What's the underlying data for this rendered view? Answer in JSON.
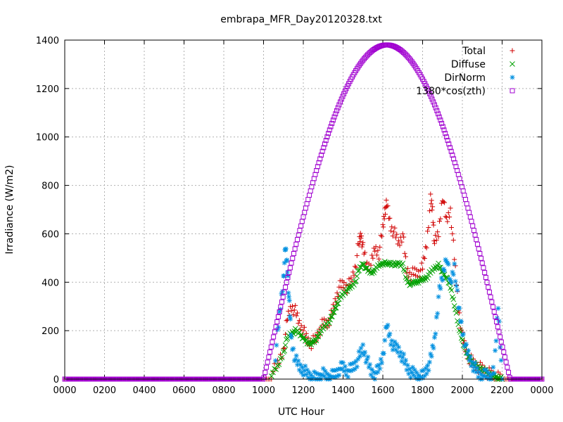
{
  "chart_data": {
    "type": "scatter",
    "title": "embrapa_MFR_Day20120328.txt",
    "xlabel": "UTC Hour",
    "ylabel": "Irradiance (W/m2)",
    "xlim": [
      0,
      2400
    ],
    "ylim": [
      0,
      1400
    ],
    "x_tick_labels": [
      "0000",
      "0200",
      "0400",
      "0600",
      "0800",
      "1000",
      "1200",
      "1400",
      "1600",
      "1800",
      "2000",
      "2200",
      "0000"
    ],
    "y_ticks": [
      0,
      200,
      400,
      600,
      800,
      1000,
      1200,
      1400
    ],
    "grid": true,
    "legend_position": "top-right",
    "series": [
      {
        "name": "Total",
        "marker": "+",
        "color": "#d00000",
        "x": [
          1040,
          1070,
          1100,
          1120,
          1140,
          1160,
          1180,
          1200,
          1220,
          1240,
          1260,
          1280,
          1300,
          1320,
          1340,
          1360,
          1380,
          1400,
          1420,
          1440,
          1460,
          1480,
          1490,
          1500,
          1520,
          1540,
          1560,
          1580,
          1600,
          1610,
          1620,
          1640,
          1660,
          1680,
          1700,
          1720,
          1740,
          1760,
          1780,
          1800,
          1820,
          1840,
          1850,
          1860,
          1880,
          1900,
          1920,
          1940,
          1960,
          1980,
          2000,
          2020,
          2040,
          2060,
          2080,
          2100,
          2120,
          2140,
          2160,
          2180,
          2200
        ],
        "y": [
          20,
          60,
          120,
          250,
          300,
          280,
          230,
          200,
          160,
          150,
          160,
          200,
          230,
          230,
          260,
          320,
          380,
          390,
          380,
          400,
          460,
          560,
          600,
          540,
          470,
          470,
          540,
          520,
          620,
          700,
          720,
          630,
          600,
          560,
          600,
          450,
          430,
          440,
          440,
          460,
          560,
          740,
          700,
          560,
          600,
          760,
          650,
          700,
          500,
          300,
          170,
          110,
          80,
          60,
          50,
          40,
          30,
          20,
          10,
          5,
          0
        ]
      },
      {
        "name": "Diffuse",
        "marker": "x",
        "color": "#00a000",
        "x": [
          1040,
          1070,
          1100,
          1120,
          1140,
          1160,
          1180,
          1200,
          1220,
          1240,
          1260,
          1280,
          1300,
          1320,
          1340,
          1360,
          1380,
          1400,
          1420,
          1440,
          1460,
          1480,
          1500,
          1520,
          1540,
          1560,
          1580,
          1600,
          1620,
          1640,
          1660,
          1680,
          1700,
          1720,
          1740,
          1760,
          1780,
          1800,
          1820,
          1840,
          1860,
          1880,
          1900,
          1920,
          1940,
          1960,
          1980,
          2000,
          2020,
          2040,
          2060,
          2080,
          2100,
          2120,
          2140,
          2160,
          2180,
          2200
        ],
        "y": [
          20,
          50,
          110,
          170,
          190,
          200,
          190,
          170,
          150,
          150,
          155,
          190,
          210,
          230,
          250,
          290,
          330,
          350,
          370,
          380,
          400,
          450,
          480,
          450,
          440,
          450,
          470,
          480,
          475,
          480,
          470,
          480,
          470,
          410,
          390,
          400,
          405,
          410,
          420,
          440,
          460,
          470,
          440,
          420,
          380,
          310,
          220,
          160,
          110,
          80,
          60,
          50,
          40,
          30,
          20,
          10,
          5,
          0
        ]
      },
      {
        "name": "DirNorm",
        "marker": "*",
        "color": "#0090e0",
        "x": [
          1060,
          1080,
          1100,
          1110,
          1120,
          1130,
          1140,
          1160,
          1180,
          1200,
          1220,
          1240,
          1260,
          1280,
          1300,
          1320,
          1340,
          1360,
          1380,
          1400,
          1420,
          1440,
          1460,
          1480,
          1500,
          1520,
          1540,
          1560,
          1580,
          1600,
          1620,
          1640,
          1660,
          1680,
          1700,
          1720,
          1740,
          1760,
          1780,
          1800,
          1820,
          1840,
          1860,
          1880,
          1900,
          1920,
          1940,
          1960,
          1980,
          2000,
          2020,
          2040,
          2060,
          2080,
          2100,
          2120,
          2140,
          2160,
          2180,
          2200
        ],
        "y": [
          100,
          260,
          420,
          540,
          460,
          300,
          160,
          80,
          50,
          40,
          20,
          10,
          5,
          10,
          20,
          10,
          10,
          20,
          40,
          50,
          30,
          40,
          60,
          90,
          130,
          80,
          30,
          20,
          40,
          100,
          220,
          160,
          130,
          120,
          90,
          50,
          30,
          20,
          10,
          10,
          40,
          80,
          160,
          340,
          420,
          510,
          390,
          470,
          300,
          200,
          120,
          80,
          50,
          20,
          10,
          20,
          10,
          30,
          310,
          0
        ]
      },
      {
        "name": "1380*cos(zth)",
        "marker": "square",
        "color": "#a000d0",
        "amplitude": 1380,
        "start": 1000,
        "end": 2240
      }
    ]
  }
}
